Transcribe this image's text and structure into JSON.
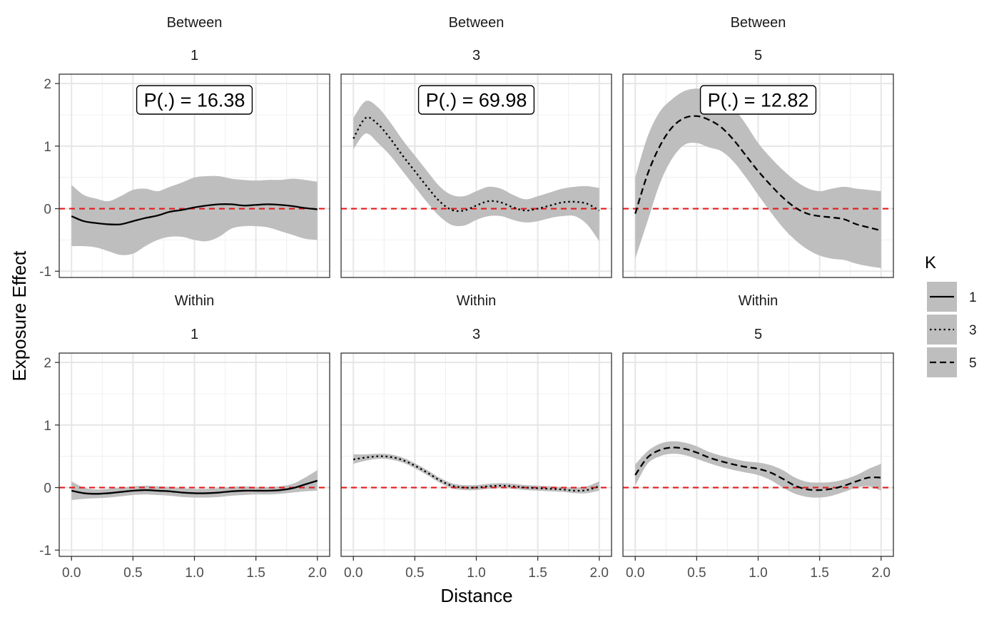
{
  "chart_data": {
    "type": "line",
    "xlabel": "Distance",
    "ylabel": "Exposure Effect",
    "xlim": [
      -0.1,
      2.1
    ],
    "ylim": [
      -1.1,
      2.15
    ],
    "x_ticks": [
      0,
      0.5,
      1,
      1.5,
      2
    ],
    "x_tick_labels": [
      "0.0",
      "0.5",
      "1.0",
      "1.5",
      "2.0"
    ],
    "y_ticks": [
      -1,
      0,
      1,
      2
    ],
    "y_tick_labels": [
      "-1",
      "0",
      "1",
      "2"
    ],
    "reference_line": {
      "y": 0,
      "color": "#e41a1c",
      "style": "dashed"
    },
    "grid": true,
    "legend": {
      "title": "K",
      "position": "right",
      "entries": [
        {
          "label": "1",
          "linetype": "solid"
        },
        {
          "label": "3",
          "linetype": "dotted"
        },
        {
          "label": "5",
          "linetype": "dashed"
        }
      ]
    },
    "panels": [
      {
        "row": 0,
        "col": 0,
        "strip_top": "Between",
        "strip_bottom": "1",
        "k": "1",
        "annotation": "P(.) =  16.38",
        "x": [
          0,
          0.1,
          0.2,
          0.3,
          0.4,
          0.5,
          0.6,
          0.7,
          0.8,
          0.9,
          1.0,
          1.1,
          1.2,
          1.3,
          1.4,
          1.5,
          1.6,
          1.7,
          1.8,
          1.9,
          2.0
        ],
        "y": [
          -0.12,
          -0.2,
          -0.23,
          -0.25,
          -0.25,
          -0.2,
          -0.15,
          -0.11,
          -0.05,
          -0.02,
          0.02,
          0.05,
          0.07,
          0.07,
          0.05,
          0.06,
          0.07,
          0.06,
          0.04,
          0.01,
          -0.01
        ],
        "lower": [
          -0.6,
          -0.6,
          -0.62,
          -0.68,
          -0.74,
          -0.72,
          -0.6,
          -0.5,
          -0.45,
          -0.45,
          -0.5,
          -0.52,
          -0.45,
          -0.32,
          -0.28,
          -0.28,
          -0.3,
          -0.36,
          -0.42,
          -0.48,
          -0.5
        ],
        "upper": [
          0.38,
          0.22,
          0.16,
          0.12,
          0.2,
          0.3,
          0.32,
          0.28,
          0.35,
          0.42,
          0.5,
          0.52,
          0.52,
          0.48,
          0.46,
          0.45,
          0.46,
          0.46,
          0.48,
          0.46,
          0.43
        ]
      },
      {
        "row": 0,
        "col": 1,
        "strip_top": "Between",
        "strip_bottom": "3",
        "k": "3",
        "annotation": "P(.) =  69.98",
        "x": [
          0,
          0.1,
          0.2,
          0.3,
          0.4,
          0.5,
          0.6,
          0.7,
          0.8,
          0.9,
          1.0,
          1.1,
          1.2,
          1.3,
          1.4,
          1.5,
          1.6,
          1.7,
          1.8,
          1.9,
          2.0
        ],
        "y": [
          1.12,
          1.45,
          1.35,
          1.12,
          0.85,
          0.6,
          0.35,
          0.12,
          -0.02,
          -0.03,
          0.05,
          0.12,
          0.1,
          0.02,
          -0.03,
          0.0,
          0.05,
          0.1,
          0.11,
          0.08,
          -0.03
        ],
        "lower": [
          0.95,
          1.2,
          1.05,
          0.85,
          0.6,
          0.35,
          0.1,
          -0.12,
          -0.26,
          -0.27,
          -0.18,
          -0.12,
          -0.12,
          -0.18,
          -0.22,
          -0.2,
          -0.15,
          -0.12,
          -0.12,
          -0.25,
          -0.52
        ],
        "upper": [
          1.45,
          1.72,
          1.62,
          1.38,
          1.1,
          0.85,
          0.6,
          0.36,
          0.22,
          0.2,
          0.28,
          0.35,
          0.32,
          0.22,
          0.15,
          0.2,
          0.26,
          0.32,
          0.35,
          0.36,
          0.33
        ]
      },
      {
        "row": 0,
        "col": 2,
        "strip_top": "Between",
        "strip_bottom": "5",
        "k": "5",
        "annotation": "P(.) =  12.82",
        "x": [
          0,
          0.1,
          0.2,
          0.3,
          0.4,
          0.5,
          0.6,
          0.7,
          0.8,
          0.9,
          1.0,
          1.1,
          1.2,
          1.3,
          1.4,
          1.5,
          1.6,
          1.7,
          1.8,
          1.9,
          2.0
        ],
        "y": [
          -0.08,
          0.55,
          1.0,
          1.3,
          1.45,
          1.48,
          1.42,
          1.3,
          1.1,
          0.85,
          0.6,
          0.38,
          0.18,
          0.02,
          -0.08,
          -0.12,
          -0.14,
          -0.17,
          -0.25,
          -0.3,
          -0.35
        ],
        "lower": [
          -0.8,
          -0.2,
          0.4,
          0.8,
          1.02,
          1.05,
          0.98,
          0.92,
          0.75,
          0.5,
          0.22,
          -0.05,
          -0.3,
          -0.5,
          -0.65,
          -0.75,
          -0.8,
          -0.82,
          -0.88,
          -0.92,
          -0.95
        ],
        "upper": [
          0.5,
          1.15,
          1.55,
          1.75,
          1.88,
          1.92,
          1.9,
          1.85,
          1.62,
          1.35,
          1.05,
          0.82,
          0.62,
          0.45,
          0.33,
          0.28,
          0.32,
          0.35,
          0.32,
          0.3,
          0.28
        ]
      },
      {
        "row": 1,
        "col": 0,
        "strip_top": "Within",
        "strip_bottom": "1",
        "k": "1",
        "annotation": "",
        "x": [
          0,
          0.1,
          0.2,
          0.3,
          0.4,
          0.5,
          0.6,
          0.7,
          0.8,
          0.9,
          1.0,
          1.1,
          1.2,
          1.3,
          1.4,
          1.5,
          1.6,
          1.7,
          1.8,
          1.9,
          2.0
        ],
        "y": [
          -0.05,
          -0.09,
          -0.1,
          -0.09,
          -0.07,
          -0.05,
          -0.04,
          -0.05,
          -0.06,
          -0.08,
          -0.09,
          -0.09,
          -0.08,
          -0.06,
          -0.05,
          -0.05,
          -0.05,
          -0.04,
          -0.01,
          0.05,
          0.11
        ],
        "lower": [
          -0.2,
          -0.18,
          -0.17,
          -0.16,
          -0.14,
          -0.12,
          -0.11,
          -0.12,
          -0.13,
          -0.15,
          -0.16,
          -0.16,
          -0.15,
          -0.13,
          -0.12,
          -0.11,
          -0.11,
          -0.1,
          -0.08,
          -0.06,
          -0.05
        ],
        "upper": [
          0.1,
          0.0,
          -0.03,
          -0.02,
          0.0,
          0.02,
          0.03,
          0.02,
          0.01,
          -0.01,
          -0.02,
          -0.02,
          -0.01,
          0.01,
          0.02,
          0.01,
          0.01,
          0.02,
          0.06,
          0.16,
          0.28
        ]
      },
      {
        "row": 1,
        "col": 1,
        "strip_top": "Within",
        "strip_bottom": "3",
        "k": "3",
        "annotation": "",
        "x": [
          0,
          0.1,
          0.2,
          0.3,
          0.4,
          0.5,
          0.6,
          0.7,
          0.8,
          0.9,
          1.0,
          1.1,
          1.2,
          1.3,
          1.4,
          1.5,
          1.6,
          1.7,
          1.8,
          1.9,
          2.0
        ],
        "y": [
          0.45,
          0.48,
          0.5,
          0.49,
          0.44,
          0.35,
          0.24,
          0.12,
          0.03,
          0.0,
          0.0,
          0.02,
          0.03,
          0.02,
          0.0,
          -0.01,
          -0.02,
          -0.03,
          -0.05,
          -0.04,
          0.02
        ],
        "lower": [
          0.38,
          0.43,
          0.46,
          0.45,
          0.4,
          0.31,
          0.2,
          0.08,
          -0.01,
          -0.04,
          -0.04,
          -0.02,
          -0.01,
          -0.02,
          -0.04,
          -0.05,
          -0.06,
          -0.07,
          -0.09,
          -0.09,
          -0.05
        ],
        "upper": [
          0.53,
          0.53,
          0.54,
          0.53,
          0.48,
          0.39,
          0.28,
          0.16,
          0.07,
          0.04,
          0.04,
          0.06,
          0.07,
          0.06,
          0.04,
          0.03,
          0.02,
          0.01,
          0.0,
          0.02,
          0.1
        ]
      },
      {
        "row": 1,
        "col": 2,
        "strip_top": "Within",
        "strip_bottom": "5",
        "k": "5",
        "annotation": "",
        "x": [
          0,
          0.1,
          0.2,
          0.3,
          0.4,
          0.5,
          0.6,
          0.7,
          0.8,
          0.9,
          1.0,
          1.1,
          1.2,
          1.3,
          1.4,
          1.5,
          1.6,
          1.7,
          1.8,
          1.9,
          2.0
        ],
        "y": [
          0.2,
          0.48,
          0.6,
          0.64,
          0.62,
          0.56,
          0.48,
          0.42,
          0.37,
          0.33,
          0.3,
          0.24,
          0.14,
          0.03,
          -0.03,
          -0.04,
          -0.02,
          0.03,
          0.1,
          0.16,
          0.16
        ],
        "lower": [
          0.03,
          0.38,
          0.5,
          0.54,
          0.52,
          0.46,
          0.39,
          0.33,
          0.28,
          0.24,
          0.2,
          0.12,
          0.0,
          -0.1,
          -0.15,
          -0.16,
          -0.13,
          -0.07,
          0.0,
          0.02,
          -0.05
        ],
        "upper": [
          0.37,
          0.58,
          0.7,
          0.74,
          0.72,
          0.66,
          0.57,
          0.51,
          0.46,
          0.42,
          0.4,
          0.36,
          0.28,
          0.16,
          0.09,
          0.08,
          0.09,
          0.13,
          0.2,
          0.3,
          0.38
        ]
      }
    ]
  }
}
